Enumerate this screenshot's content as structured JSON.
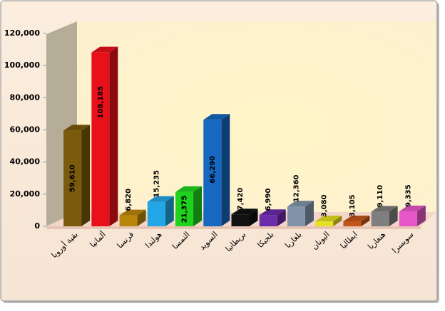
{
  "chart_data": {
    "type": "bar3d",
    "categories": [
      "بقية أوروبا",
      "ألمانيا",
      "فرنسا",
      "هولندا",
      "النمسا",
      "السويد",
      "بريطانيا",
      "بلجيكا",
      "بلغاريا",
      "اليونان",
      "ايطاليا",
      "هنغاريا",
      "سويسرا"
    ],
    "values": [
      59610,
      108185,
      6820,
      15235,
      21375,
      66290,
      7420,
      6990,
      12360,
      3080,
      3105,
      9110,
      9335
    ],
    "value_labels": [
      "59,610",
      "108,185",
      "6,820",
      "15,235",
      "21,375",
      "66,290",
      "7,420",
      "6,990",
      "12,360",
      "3,080",
      "3,105",
      "9,110",
      "9,335"
    ],
    "colors": [
      "#7a5a0c",
      "#e8101a",
      "#b8860b",
      "#22a6e6",
      "#1ed21e",
      "#1668c0",
      "#111111",
      "#6a2ca8",
      "#8393aa",
      "#e6e022",
      "#c2561a",
      "#7f7f7f",
      "#e656c8"
    ],
    "ylim": [
      0,
      120000
    ],
    "yticks": [
      0,
      {
        "value": 20000,
        "label": "20,000"
      },
      {
        "value": 40000,
        "label": "40,000"
      },
      {
        "value": 60000,
        "label": "60,000"
      },
      {
        "value": 80000,
        "label": "80,000"
      },
      {
        "value": 100000,
        "label": "100,000"
      },
      {
        "value": 120000,
        "label": "120,000"
      }
    ]
  }
}
